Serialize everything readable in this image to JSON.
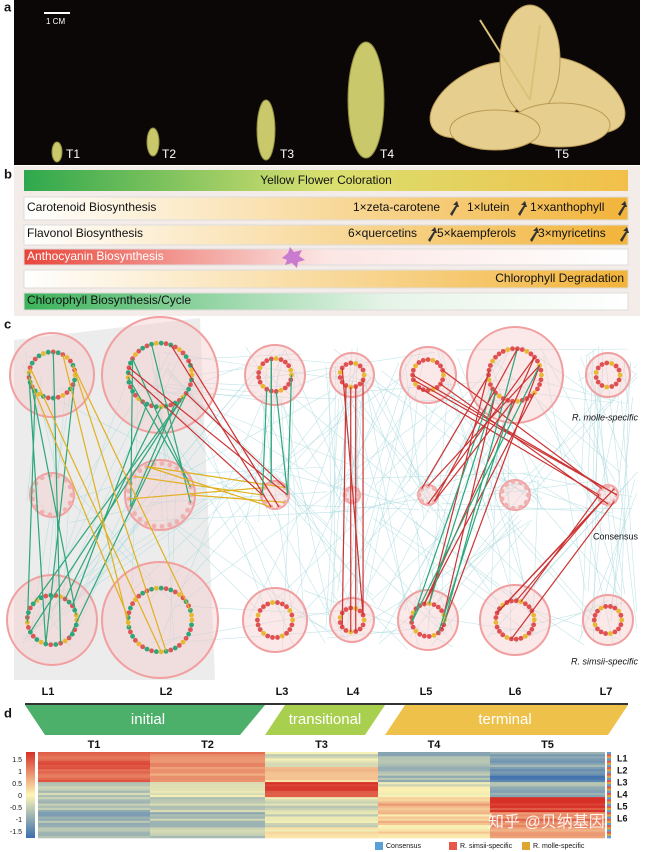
{
  "panel_a": {
    "label": "a",
    "scale": "1 CM",
    "stages": [
      "T1",
      "T2",
      "T3",
      "T4",
      "T5"
    ]
  },
  "panel_b": {
    "label": "b",
    "banner": "Yellow Flower Coloration",
    "rows": [
      {
        "name": "Carotenoid Biosynthesis",
        "metabolites": [
          "1×zeta-carotene",
          "1×lutein",
          "1×xanthophyll"
        ]
      },
      {
        "name": "Flavonol Biosynthesis",
        "metabolites": [
          "6×quercetins",
          "5×kaempferols",
          "3×myricetins"
        ]
      },
      {
        "name": "Anthocyanin Biosynthesis"
      },
      {
        "name": "Chlorophyll Degradation"
      },
      {
        "name": "Chlorophyll Biosynthesis/Cycle"
      }
    ]
  },
  "panel_c": {
    "label": "c",
    "layers": [
      "L1",
      "L2",
      "L3",
      "L4",
      "L5",
      "L6",
      "L7"
    ],
    "rows": [
      "R. molle-specific",
      "Consensus",
      "R. simsii-specific"
    ]
  },
  "panel_d": {
    "label": "d",
    "phases": [
      "initial",
      "transitional",
      "terminal"
    ],
    "stages": [
      "T1",
      "T2",
      "T3",
      "T4",
      "T5"
    ],
    "scale_ticks": [
      "1.5",
      "1",
      "0.5",
      "0",
      "-0.5",
      "-1",
      "-1.5"
    ],
    "modules": [
      "L1",
      "L2",
      "L3",
      "L4",
      "L5",
      "L6"
    ],
    "legend": [
      "Consensus",
      "R. simsii-specific",
      "R. molle-specific"
    ]
  },
  "watermark": "知乎 @贝纳基因"
}
